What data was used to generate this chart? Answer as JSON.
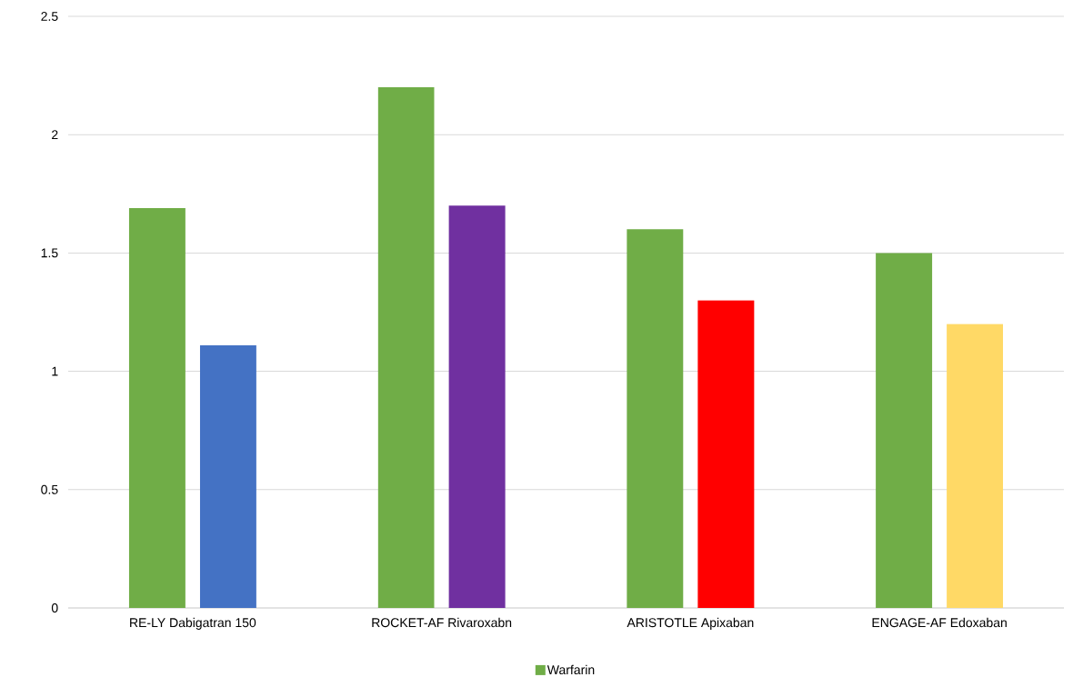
{
  "chart_data": {
    "type": "bar",
    "categories": [
      "RE-LY Dabigatran 150",
      "ROCKET-AF Rivaroxabn",
      "ARISTOTLE Apixaban",
      "ENGAGE-AF Edoxaban"
    ],
    "series": [
      {
        "name": "Warfarin",
        "color": "#70ad47",
        "values": [
          1.69,
          2.2,
          1.6,
          1.5
        ]
      },
      {
        "colors": [
          "#4472c4",
          "#7030a0",
          "#ff0000",
          "#ffd966"
        ],
        "values": [
          1.11,
          1.7,
          1.3,
          1.2
        ]
      }
    ],
    "ylim": [
      0,
      2.5
    ],
    "yticks": [
      0,
      0.5,
      1,
      1.5,
      2,
      2.5
    ],
    "grid": "y",
    "legend": "bottom"
  }
}
